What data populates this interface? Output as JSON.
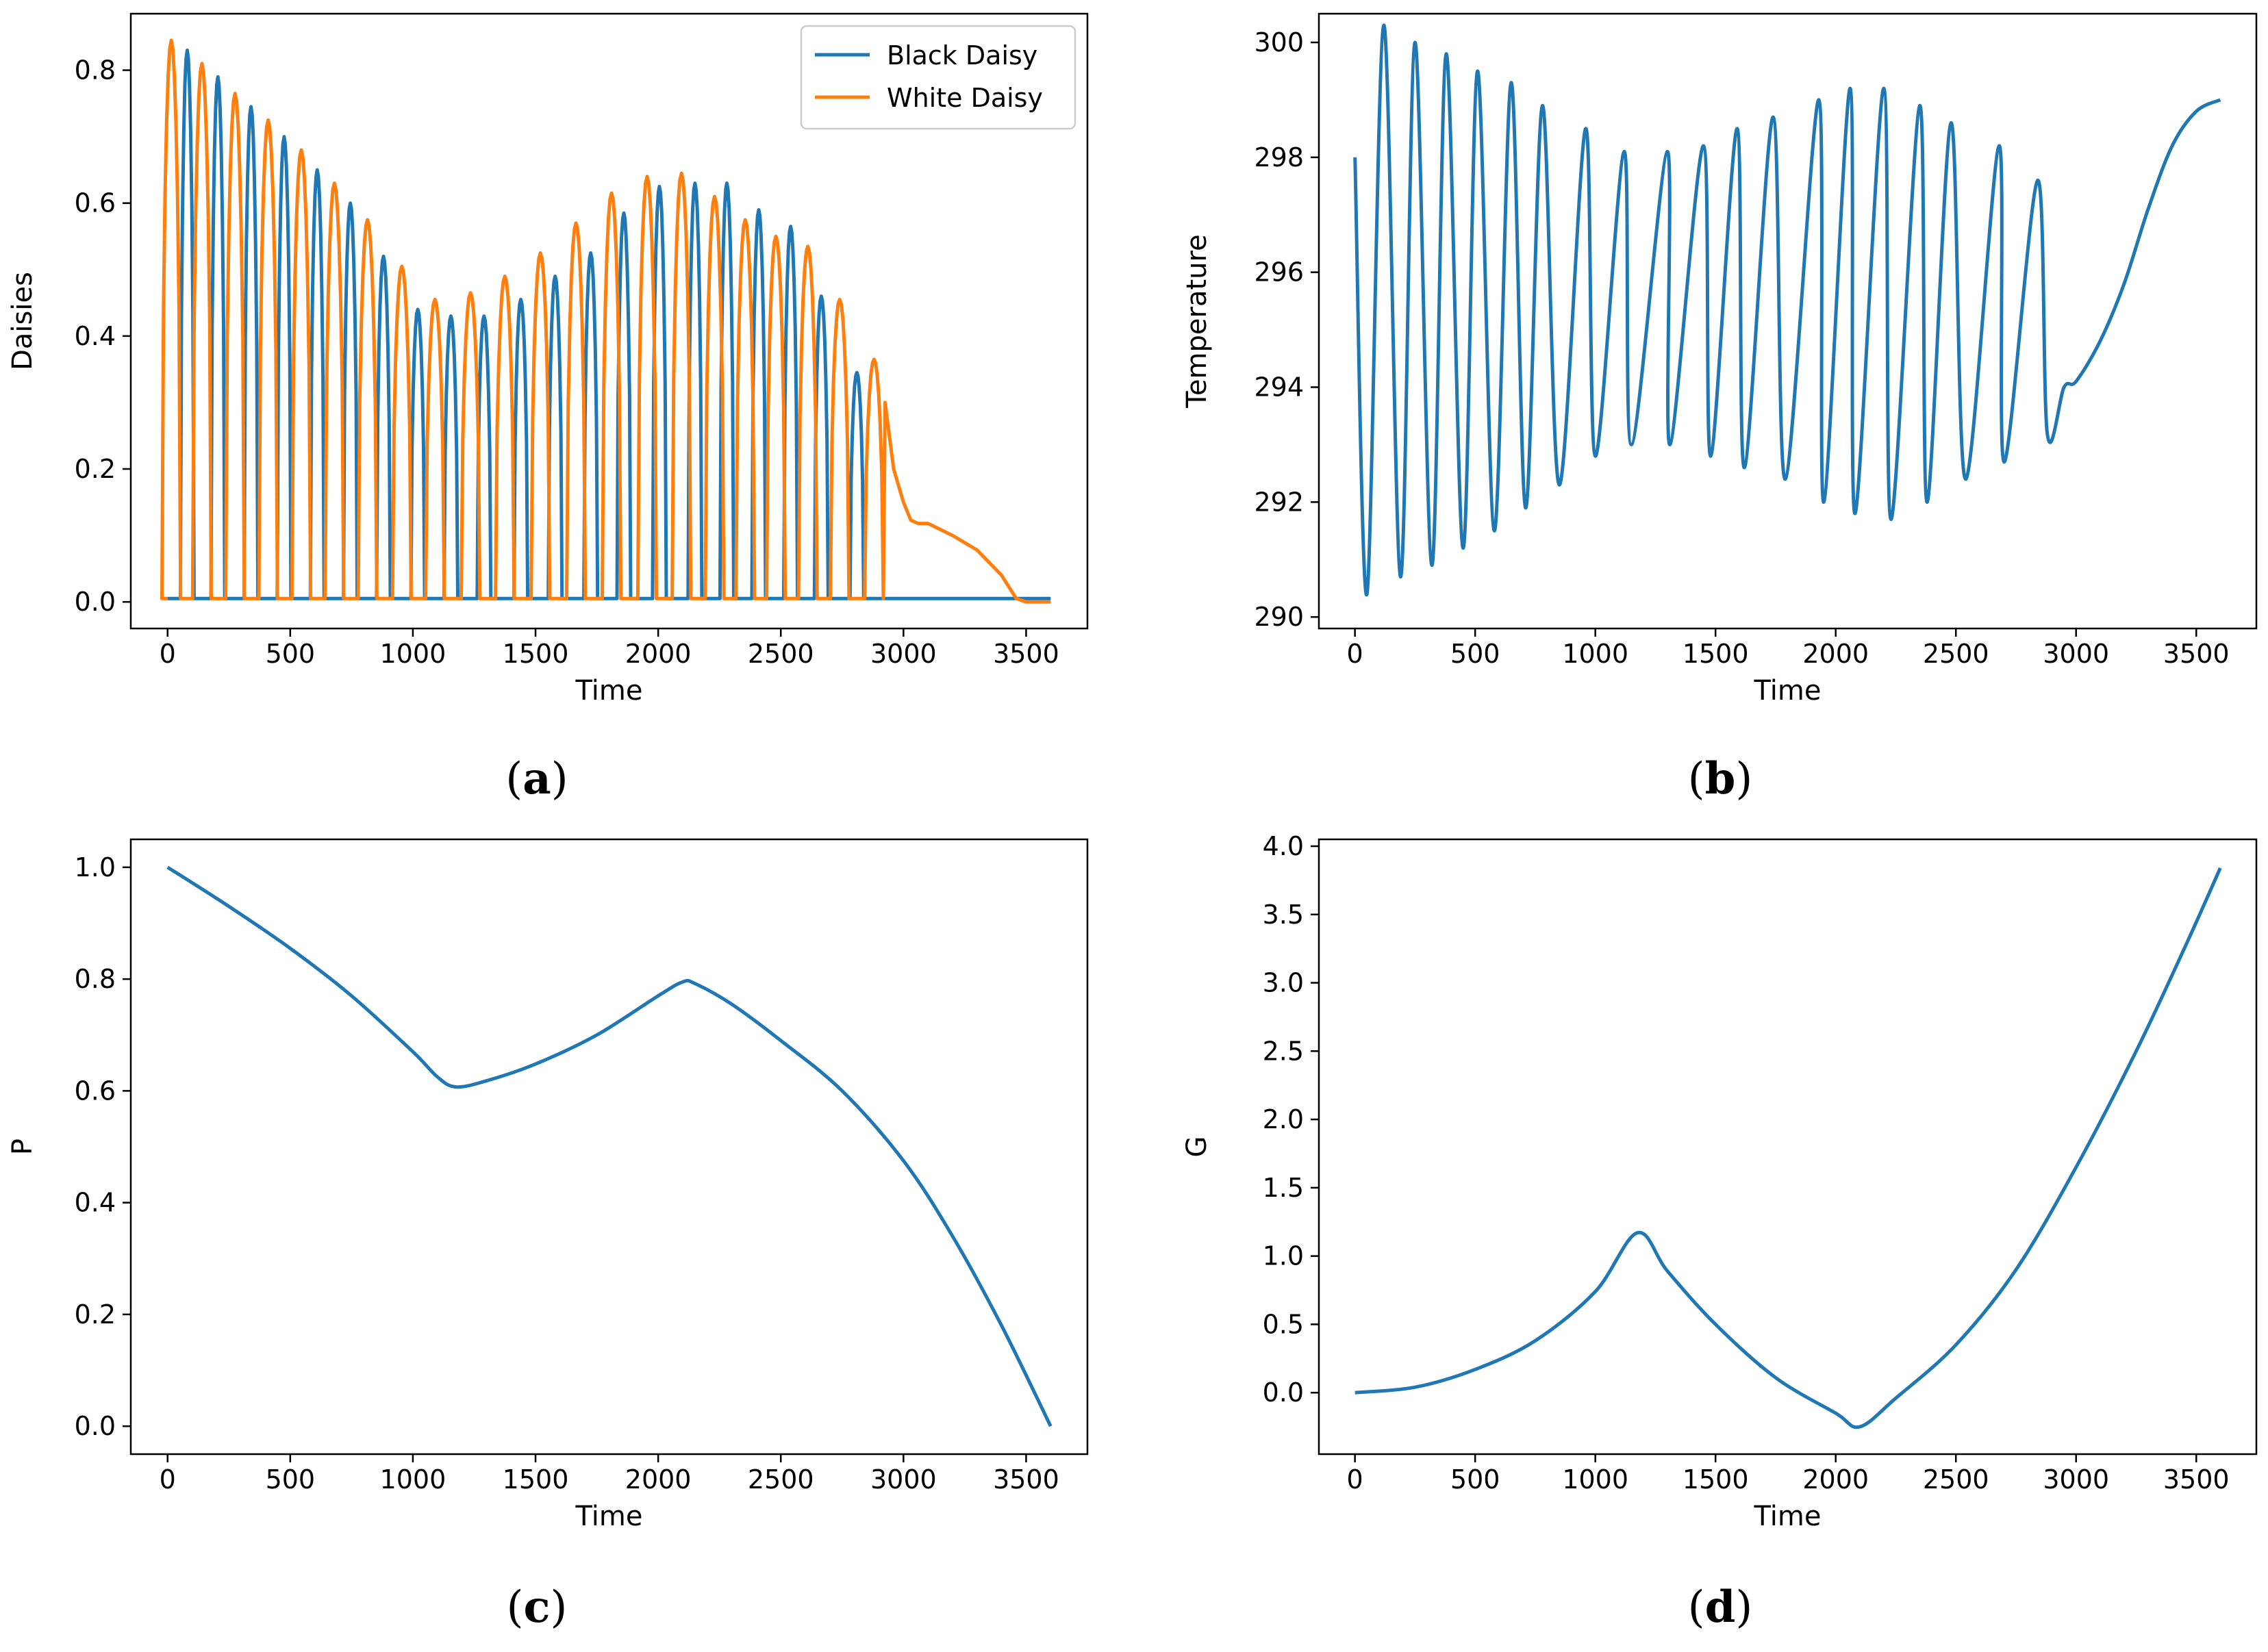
{
  "colors": {
    "black_daisy": "#1f77b4",
    "white_daisy": "#ff7f0e",
    "line": "#1f77b4",
    "axis": "#000000"
  },
  "chart_data": [
    {
      "panel": "(a)",
      "letter": "a",
      "type": "line",
      "xlabel": "Time",
      "ylabel": "Daisies",
      "xlim": [
        -150,
        3750
      ],
      "ylim": [
        -0.04,
        0.885
      ],
      "xticks": [
        0,
        500,
        1000,
        1500,
        2000,
        2500,
        3000,
        3500
      ],
      "yticks": [
        0.0,
        0.2,
        0.4,
        0.6,
        0.8
      ],
      "ytick_decimals": 1,
      "legend": {
        "position": "top-right"
      },
      "series": [
        {
          "name": "Black Daisy",
          "color": "#1f77b4",
          "kind": "pulses",
          "peaks": [
            [
              80,
              0.83
            ],
            [
              205,
              0.79
            ],
            [
              340,
              0.745
            ],
            [
              475,
              0.7
            ],
            [
              610,
              0.65
            ],
            [
              745,
              0.6
            ],
            [
              880,
              0.52
            ],
            [
              1020,
              0.44
            ],
            [
              1155,
              0.43
            ],
            [
              1290,
              0.43
            ],
            [
              1440,
              0.455
            ],
            [
              1580,
              0.49
            ],
            [
              1725,
              0.525
            ],
            [
              1860,
              0.585
            ],
            [
              2005,
              0.625
            ],
            [
              2150,
              0.63
            ],
            [
              2280,
              0.63
            ],
            [
              2410,
              0.59
            ],
            [
              2540,
              0.565
            ],
            [
              2665,
              0.46
            ],
            [
              2810,
              0.345
            ]
          ],
          "half_width": 28
        },
        {
          "name": "White Daisy",
          "color": "#ff7f0e",
          "kind": "pulses",
          "peaks": [
            [
              15,
              0.845
            ],
            [
              140,
              0.81
            ],
            [
              275,
              0.765
            ],
            [
              410,
              0.725
            ],
            [
              545,
              0.68
            ],
            [
              680,
              0.63
            ],
            [
              815,
              0.575
            ],
            [
              955,
              0.505
            ],
            [
              1090,
              0.455
            ],
            [
              1235,
              0.465
            ],
            [
              1375,
              0.49
            ],
            [
              1520,
              0.525
            ],
            [
              1665,
              0.57
            ],
            [
              1810,
              0.615
            ],
            [
              1955,
              0.64
            ],
            [
              2095,
              0.645
            ],
            [
              2230,
              0.61
            ],
            [
              2355,
              0.575
            ],
            [
              2480,
              0.55
            ],
            [
              2610,
              0.535
            ],
            [
              2740,
              0.455
            ],
            [
              2880,
              0.365
            ]
          ],
          "half_width": 38,
          "tail": [
            [
              2925,
              0.3
            ],
            [
              2960,
              0.2
            ],
            [
              3000,
              0.15
            ],
            [
              3030,
              0.123
            ],
            [
              3060,
              0.118
            ],
            [
              3100,
              0.118
            ],
            [
              3200,
              0.1
            ],
            [
              3300,
              0.078
            ],
            [
              3400,
              0.04
            ],
            [
              3460,
              0.005
            ],
            [
              3500,
              0.0
            ],
            [
              3600,
              0.0
            ]
          ]
        }
      ]
    },
    {
      "panel": "(b)",
      "letter": "b",
      "type": "line",
      "xlabel": "Time",
      "ylabel": "Temperature",
      "xlim": [
        -150,
        3750
      ],
      "ylim": [
        289.8,
        300.5
      ],
      "xticks": [
        0,
        500,
        1000,
        1500,
        2000,
        2500,
        3000,
        3500
      ],
      "yticks": [
        290,
        292,
        294,
        296,
        298,
        300
      ],
      "ytick_decimals": 0,
      "series": [
        {
          "name": "",
          "color": "#1f77b4",
          "kind": "oscillation",
          "points": [
            [
              0,
              298.0
            ],
            [
              50,
              290.4
            ],
            [
              120,
              300.3
            ],
            [
              190,
              290.7
            ],
            [
              250,
              300.0
            ],
            [
              320,
              290.9
            ],
            [
              380,
              299.8
            ],
            [
              450,
              291.2
            ],
            [
              510,
              299.5
            ],
            [
              580,
              291.5
            ],
            [
              650,
              299.3
            ],
            [
              710,
              291.9
            ],
            [
              780,
              298.9
            ],
            [
              850,
              292.3
            ],
            [
              960,
              298.5
            ],
            [
              1000,
              292.8
            ],
            [
              1120,
              298.1
            ],
            [
              1150,
              293.0
            ],
            [
              1300,
              298.1
            ],
            [
              1310,
              293.0
            ],
            [
              1450,
              298.2
            ],
            [
              1480,
              292.8
            ],
            [
              1590,
              298.5
            ],
            [
              1620,
              292.6
            ],
            [
              1740,
              298.7
            ],
            [
              1790,
              292.4
            ],
            [
              1930,
              299.0
            ],
            [
              1950,
              292.0
            ],
            [
              2060,
              299.2
            ],
            [
              2080,
              291.8
            ],
            [
              2200,
              299.2
            ],
            [
              2230,
              291.7
            ],
            [
              2350,
              298.9
            ],
            [
              2380,
              292.0
            ],
            [
              2480,
              298.6
            ],
            [
              2540,
              292.4
            ],
            [
              2680,
              298.2
            ],
            [
              2700,
              292.7
            ],
            [
              2840,
              297.6
            ],
            [
              2880,
              293.2
            ],
            [
              2950,
              294.0
            ],
            [
              3000,
              294.1
            ],
            [
              3100,
              294.8
            ],
            [
              3200,
              295.8
            ],
            [
              3300,
              297.1
            ],
            [
              3400,
              298.2
            ],
            [
              3500,
              298.8
            ],
            [
              3600,
              299.0
            ]
          ]
        }
      ]
    },
    {
      "panel": "(c)",
      "letter": "c",
      "type": "line",
      "xlabel": "Time",
      "ylabel": "P",
      "xlim": [
        -150,
        3750
      ],
      "ylim": [
        -0.05,
        1.05
      ],
      "xticks": [
        0,
        500,
        1000,
        1500,
        2000,
        2500,
        3000,
        3500
      ],
      "yticks": [
        0.0,
        0.2,
        0.4,
        0.6,
        0.8,
        1.0
      ],
      "ytick_decimals": 1,
      "series": [
        {
          "name": "",
          "color": "#1f77b4",
          "kind": "smooth",
          "points": [
            [
              0,
              1.0
            ],
            [
              250,
              0.93
            ],
            [
              500,
              0.855
            ],
            [
              750,
              0.77
            ],
            [
              1000,
              0.67
            ],
            [
              1100,
              0.625
            ],
            [
              1175,
              0.607
            ],
            [
              1300,
              0.618
            ],
            [
              1500,
              0.648
            ],
            [
              1750,
              0.7
            ],
            [
              2000,
              0.77
            ],
            [
              2100,
              0.795
            ],
            [
              2150,
              0.792
            ],
            [
              2300,
              0.755
            ],
            [
              2500,
              0.69
            ],
            [
              2750,
              0.6
            ],
            [
              3000,
              0.475
            ],
            [
              3200,
              0.34
            ],
            [
              3400,
              0.18
            ],
            [
              3600,
              0.0
            ]
          ]
        }
      ]
    },
    {
      "panel": "(d)",
      "letter": "d",
      "type": "line",
      "xlabel": "Time",
      "ylabel": "G",
      "xlim": [
        -150,
        3750
      ],
      "ylim": [
        -0.45,
        4.05
      ],
      "xticks": [
        0,
        500,
        1000,
        1500,
        2000,
        2500,
        3000,
        3500
      ],
      "yticks": [
        0.0,
        0.5,
        1.0,
        1.5,
        2.0,
        2.5,
        3.0,
        3.5,
        4.0
      ],
      "ytick_decimals": 1,
      "series": [
        {
          "name": "",
          "color": "#1f77b4",
          "kind": "smooth",
          "points": [
            [
              0,
              0.0
            ],
            [
              250,
              0.04
            ],
            [
              500,
              0.17
            ],
            [
              750,
              0.38
            ],
            [
              1000,
              0.74
            ],
            [
              1175,
              1.17
            ],
            [
              1300,
              0.89
            ],
            [
              1500,
              0.5
            ],
            [
              1750,
              0.11
            ],
            [
              2000,
              -0.15
            ],
            [
              2100,
              -0.25
            ],
            [
              2250,
              -0.04
            ],
            [
              2500,
              0.35
            ],
            [
              2750,
              0.9
            ],
            [
              3000,
              1.65
            ],
            [
              3250,
              2.5
            ],
            [
              3450,
              3.25
            ],
            [
              3600,
              3.84
            ]
          ]
        }
      ]
    }
  ]
}
